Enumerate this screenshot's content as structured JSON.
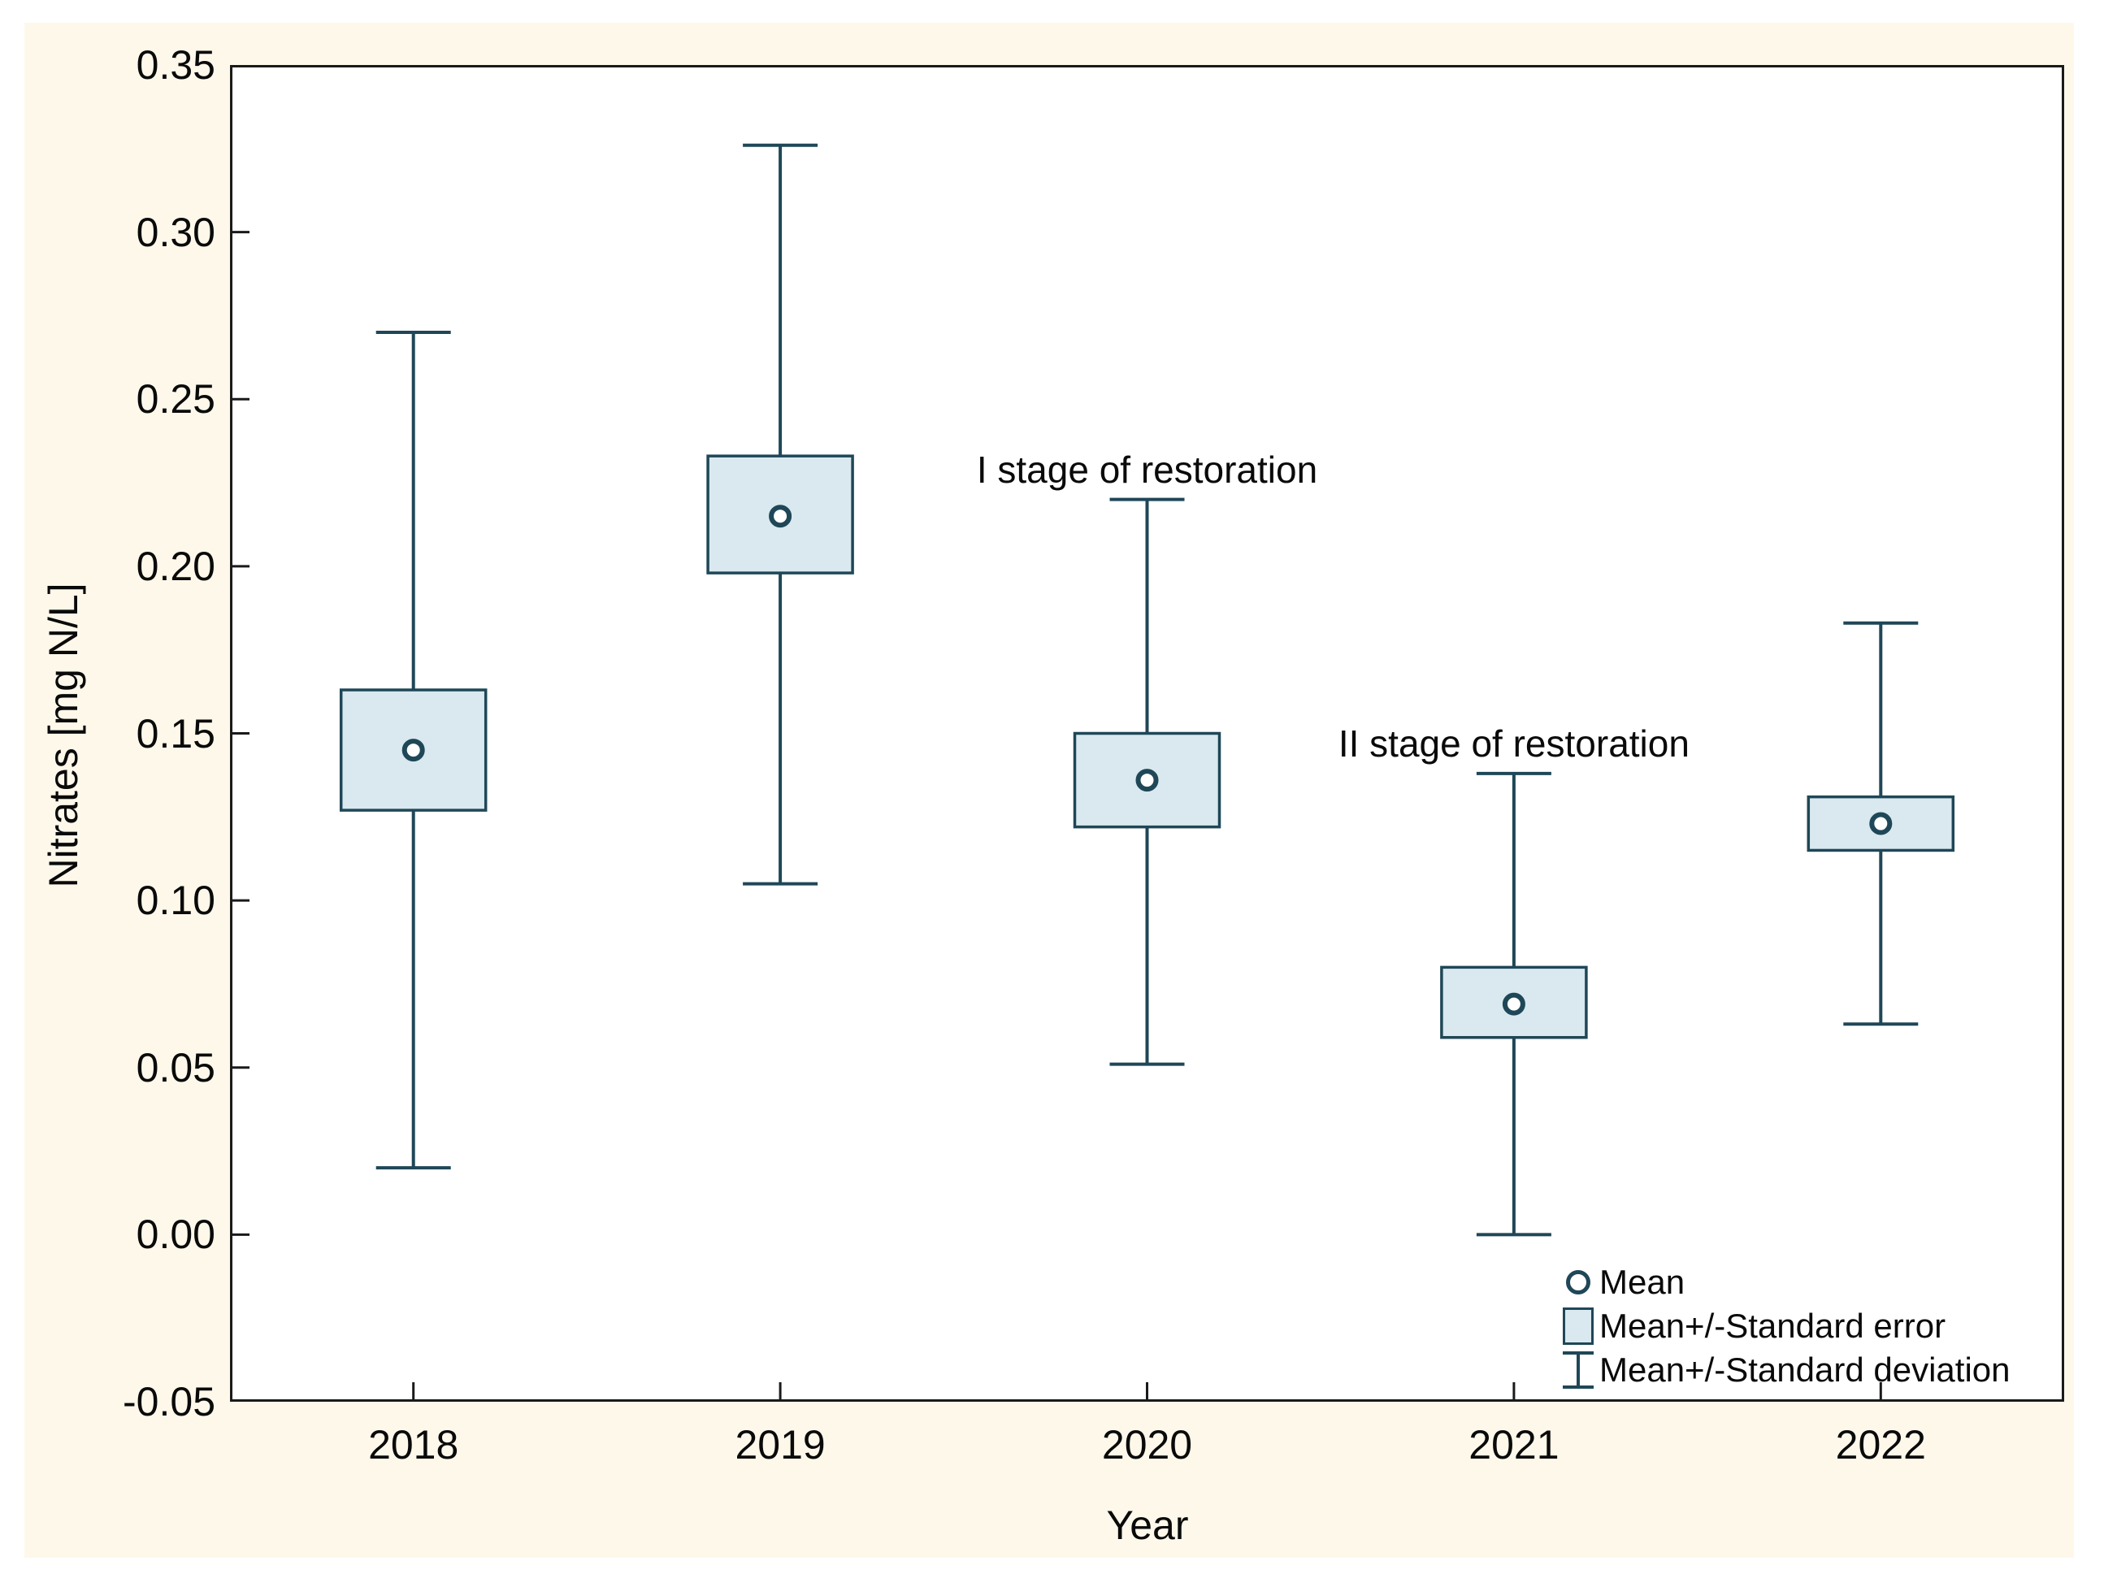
{
  "colors": {
    "panel_bg": "#FDF8EA",
    "plot_bg": "#ffffff",
    "frame": "#1a1a1a",
    "series_stroke": "#1F4757",
    "box_fill": "#D9E9EF",
    "text": "#0a0a0a",
    "mean_fill": "#ffffff"
  },
  "y_axis": {
    "title": "Nitrates [mg N/L]",
    "tick_values": [
      0.35,
      0.3,
      0.25,
      0.2,
      0.15,
      0.1,
      0.05,
      0.0,
      -0.05
    ]
  },
  "x_axis": {
    "title": "Year",
    "categories": [
      "2018",
      "2019",
      "2020",
      "2021",
      "2022"
    ]
  },
  "legend": {
    "items": [
      {
        "marker": "mean-circle-icon",
        "label": "Mean"
      },
      {
        "marker": "standard-error-box-icon",
        "label": "Mean+/-Standard error"
      },
      {
        "marker": "standard-deviation-whisker-icon",
        "label": "Mean+/-Standard deviation"
      }
    ]
  },
  "annotations": [
    {
      "text": "I stage of restoration",
      "category": "2020"
    },
    {
      "text": "II stage of restoration",
      "category": "2021"
    }
  ],
  "chart_data": {
    "type": "box-whisker-mean-se-sd",
    "title": "",
    "xlabel": "Year",
    "ylabel": "Nitrates [mg N/L]",
    "ylim": [
      -0.05,
      0.35
    ],
    "grid": false,
    "legend_position": "inside-bottom-right",
    "categories": [
      "2018",
      "2019",
      "2020",
      "2021",
      "2022"
    ],
    "series": [
      {
        "name": "mean",
        "values": [
          0.145,
          0.215,
          0.136,
          0.069,
          0.123
        ]
      },
      {
        "name": "se_low",
        "values": [
          0.127,
          0.198,
          0.122,
          0.059,
          0.115
        ]
      },
      {
        "name": "se_high",
        "values": [
          0.163,
          0.233,
          0.15,
          0.08,
          0.131
        ]
      },
      {
        "name": "sd_low",
        "values": [
          0.02,
          0.105,
          0.051,
          0.0,
          0.063
        ]
      },
      {
        "name": "sd_high",
        "values": [
          0.27,
          0.326,
          0.22,
          0.138,
          0.183
        ]
      }
    ]
  }
}
